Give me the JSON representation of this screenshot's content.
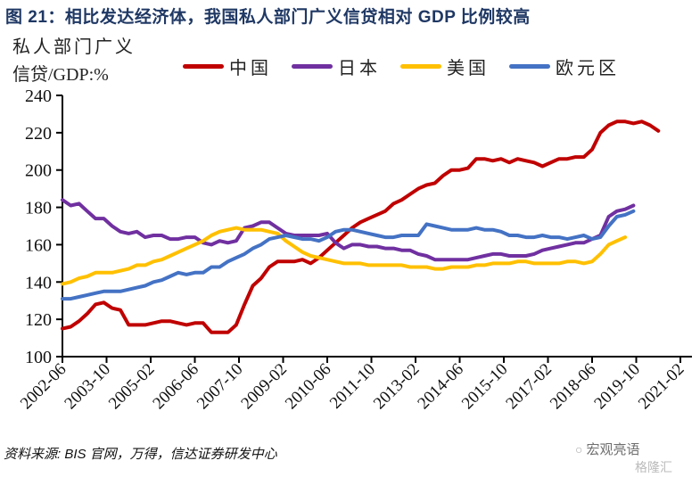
{
  "title": "图 21：相比发达经济体，我国私人部门广义信贷相对 GDP 比例较高",
  "source": "资料来源: BIS 官网，万得，信达证券研发中心",
  "watermark": {
    "icon": "wechat-icon",
    "text": "宏观亮语",
    "brand": "格隆汇"
  },
  "chart_data": {
    "type": "line",
    "title": "相比发达经济体，我国私人部门广义信贷相对 GDP 比例较高",
    "ylabel_line1": "私人部门广义",
    "ylabel_line2": "信贷/GDP:%",
    "xlabel": "",
    "ylim": [
      100,
      240
    ],
    "yticks": [
      100,
      120,
      140,
      160,
      180,
      200,
      220,
      240
    ],
    "xtick_labels": [
      "2002-06",
      "2003-10",
      "2005-02",
      "2006-06",
      "2007-10",
      "2009-02",
      "2010-06",
      "2011-10",
      "2013-02",
      "2014-06",
      "2015-10",
      "2017-02",
      "2018-06",
      "2019-10",
      "2021-02"
    ],
    "x_start": "2002-06",
    "x_end": "2021-06",
    "x_step_months": 3,
    "grid": false,
    "legend_position": "top",
    "series": [
      {
        "name": "中国",
        "color": "#c00000",
        "values": [
          115,
          116,
          119,
          123,
          128,
          129,
          126,
          125,
          117,
          117,
          117,
          118,
          119,
          119,
          118,
          117,
          118,
          118,
          113,
          113,
          113,
          117,
          128,
          138,
          142,
          148,
          151,
          151,
          151,
          152,
          150,
          153,
          157,
          161,
          165,
          169,
          172,
          174,
          176,
          178,
          182,
          184,
          187,
          190,
          192,
          193,
          197,
          200,
          200,
          201,
          206,
          206,
          205,
          206,
          204,
          206,
          205,
          204,
          202,
          204,
          206,
          206,
          207,
          207,
          211,
          220,
          224,
          226,
          226,
          225,
          226,
          224,
          221
        ]
      },
      {
        "name": "日本",
        "color": "#7030a0",
        "values": [
          184,
          181,
          182,
          178,
          174,
          174,
          170,
          167,
          166,
          167,
          164,
          165,
          165,
          163,
          163,
          164,
          164,
          161,
          160,
          162,
          161,
          162,
          169,
          170,
          172,
          172,
          169,
          166,
          165,
          165,
          165,
          165,
          166,
          161,
          158,
          160,
          160,
          159,
          159,
          158,
          158,
          157,
          157,
          155,
          154,
          152,
          152,
          152,
          152,
          152,
          153,
          154,
          155,
          155,
          154,
          154,
          154,
          155,
          157,
          158,
          159,
          160,
          161,
          161,
          163,
          165,
          175,
          178,
          179,
          181
        ]
      },
      {
        "name": "美国",
        "color": "#ffc000",
        "values": [
          139,
          140,
          142,
          143,
          145,
          145,
          145,
          146,
          147,
          149,
          149,
          151,
          152,
          154,
          156,
          158,
          160,
          162,
          165,
          167,
          168,
          169,
          168,
          168,
          168,
          167,
          166,
          162,
          159,
          156,
          154,
          153,
          152,
          151,
          150,
          150,
          150,
          149,
          149,
          149,
          149,
          149,
          148,
          148,
          148,
          147,
          147,
          148,
          148,
          148,
          149,
          149,
          150,
          150,
          150,
          151,
          151,
          150,
          150,
          150,
          150,
          151,
          151,
          150,
          151,
          155,
          160,
          162,
          164
        ]
      },
      {
        "name": "欧元区",
        "color": "#4472c4",
        "values": [
          131,
          131,
          132,
          133,
          134,
          135,
          135,
          135,
          136,
          137,
          138,
          140,
          141,
          143,
          145,
          144,
          145,
          145,
          148,
          148,
          151,
          153,
          155,
          158,
          160,
          163,
          164,
          165,
          164,
          163,
          163,
          162,
          164,
          167,
          168,
          168,
          167,
          166,
          165,
          164,
          164,
          165,
          165,
          165,
          171,
          170,
          169,
          168,
          168,
          168,
          169,
          168,
          168,
          167,
          165,
          165,
          164,
          164,
          165,
          164,
          164,
          163,
          164,
          165,
          163,
          164,
          170,
          175,
          176,
          178
        ]
      }
    ]
  }
}
